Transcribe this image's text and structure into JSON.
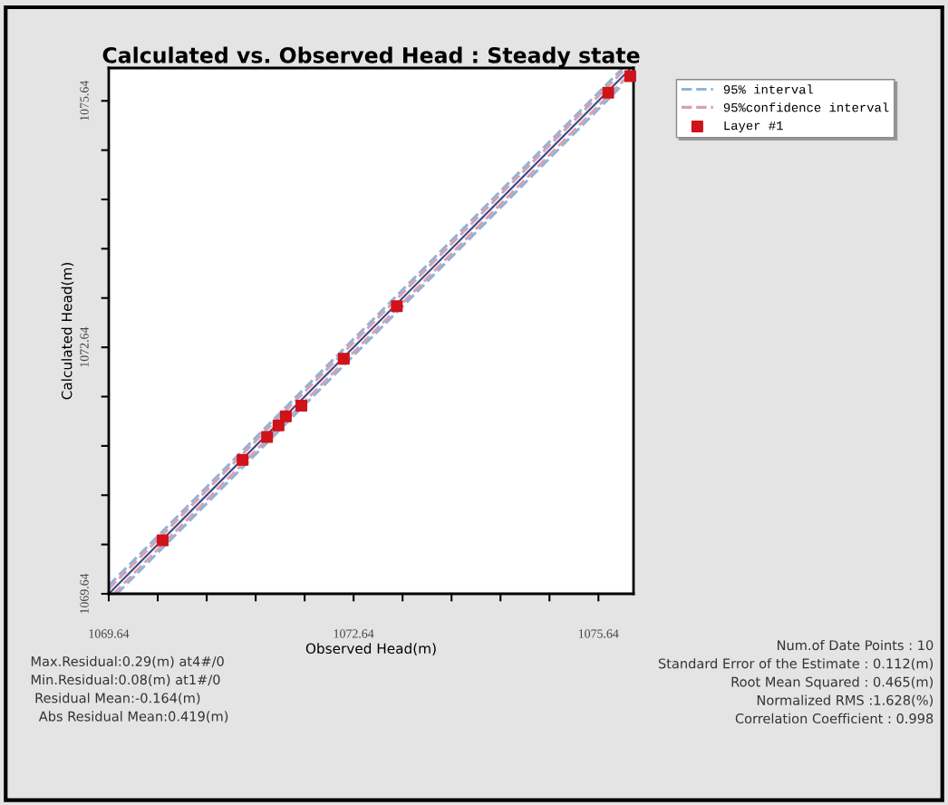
{
  "chart_data": {
    "type": "scatter",
    "title": "Calculated vs. Observed Head : Steady state",
    "xlabel": "Observed Head(m)",
    "ylabel": "Calculated Head(m)",
    "xlim": [
      1069.64,
      1076.07
    ],
    "ylim": [
      1069.64,
      1076.04
    ],
    "xticks": [
      1069.64,
      {
        "value": 1070.24,
        "label": null
      },
      {
        "value": 1070.84,
        "label": null
      },
      {
        "value": 1071.44,
        "label": null
      },
      {
        "value": 1072.04,
        "label": null
      },
      1072.64,
      {
        "value": 1073.24,
        "label": null
      },
      {
        "value": 1073.84,
        "label": null
      },
      {
        "value": 1074.44,
        "label": null
      },
      {
        "value": 1075.04,
        "label": null
      },
      1075.64
    ],
    "yticks": [
      1069.64,
      {
        "value": 1070.24,
        "label": null
      },
      {
        "value": 1070.84,
        "label": null
      },
      {
        "value": 1071.44,
        "label": null
      },
      {
        "value": 1072.04,
        "label": null
      },
      1072.64,
      {
        "value": 1073.24,
        "label": null
      },
      {
        "value": 1073.84,
        "label": null
      },
      {
        "value": 1074.44,
        "label": null
      },
      {
        "value": 1075.04,
        "label": null
      },
      1075.64
    ],
    "grid": false,
    "legend": "right",
    "series": [
      {
        "type": "line",
        "color": "#3a4f8a",
        "line_style": "solid",
        "x": [
          1069.64,
          1076.04
        ],
        "values": [
          1069.64,
          1076.04
        ]
      },
      {
        "type": "line",
        "name": "95% interval",
        "color": "#8fb4d9",
        "line_style": "dashed",
        "x": [
          1069.64,
          1075.94
        ],
        "values": [
          1069.74,
          1076.04
        ]
      },
      {
        "type": "line",
        "color": "#8fb4d9",
        "line_style": "dashed",
        "x": [
          1069.74,
          1075.9
        ],
        "values": [
          1069.64,
          1075.8
        ]
      },
      {
        "type": "line",
        "name": "95%confidence interval",
        "color": "#d9a0b0",
        "line_style": "dashed",
        "x": [
          1069.64,
          1075.98
        ],
        "values": [
          1069.7,
          1076.04
        ]
      },
      {
        "type": "line",
        "color": "#d9a0b0",
        "line_style": "dashed",
        "x": [
          1069.7,
          1076.07
        ],
        "values": [
          1069.64,
          1076.01
        ]
      },
      {
        "name": "Layer #1",
        "color": "#d0121b",
        "marker": "square",
        "x": [
          1070.3,
          1071.28,
          1071.58,
          1071.72,
          1071.81,
          1072.0,
          1072.52,
          1073.17,
          1075.76,
          1076.03
        ],
        "values": [
          1070.29,
          1071.27,
          1071.55,
          1071.69,
          1071.8,
          1071.93,
          1072.5,
          1073.14,
          1075.74,
          1075.94
        ]
      }
    ],
    "annotations": [
      "Max.Residual:0.29(m) at4#/0\nMin.Residual:0.08(m) at1#/0\n Residual Mean:-0.164(m)\n  Abs Residual Mean:0.419(m)",
      "Num.of Date Points : 10\nStandard Error of the Estimate : 0.112(m)\nRoot Mean Squared : 0.465(m)\nNormalized RMS :1.628(%)\nCorrelation Coefficient : 0.998"
    ]
  }
}
